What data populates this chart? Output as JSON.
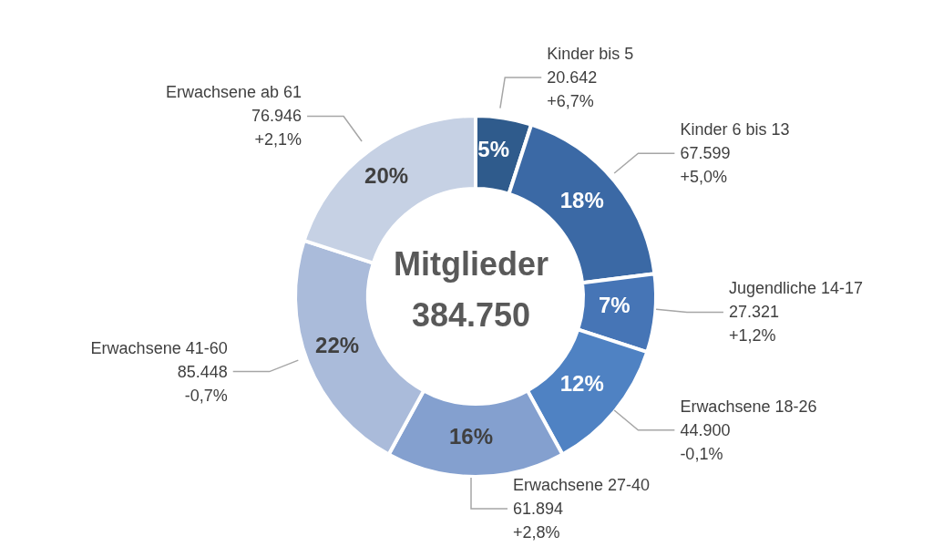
{
  "chart_data": {
    "type": "donut",
    "title": "Mitglieder",
    "subtitle": "384.750",
    "categories": [
      "Kinder bis 5",
      "Kinder 6 bis 13",
      "Jugendliche 14-17",
      "Erwachsene 18-26",
      "Erwachsene 27-40",
      "Erwachsene 41-60",
      "Erwachsene ab 61"
    ],
    "values": [
      5,
      18,
      7,
      12,
      16,
      22,
      20
    ],
    "colors": [
      "#2f5b8c",
      "#3b69a5",
      "#4675b6",
      "#4f82c3",
      "#84a0cf",
      "#aabbda",
      "#c6d1e4"
    ],
    "value_labels": [
      "5%",
      "18%",
      "7%",
      "12%",
      "16%",
      "22%",
      "20%"
    ],
    "annotations": [
      "20.642",
      "+6,7%",
      "67.599",
      "+5,0%",
      "27.321",
      "+1,2%",
      "44.900",
      "-0,1%",
      "61.894",
      "+2,8%",
      "85.448",
      "-0,7%",
      "76.946",
      "+2,1%"
    ],
    "legend": false
  }
}
